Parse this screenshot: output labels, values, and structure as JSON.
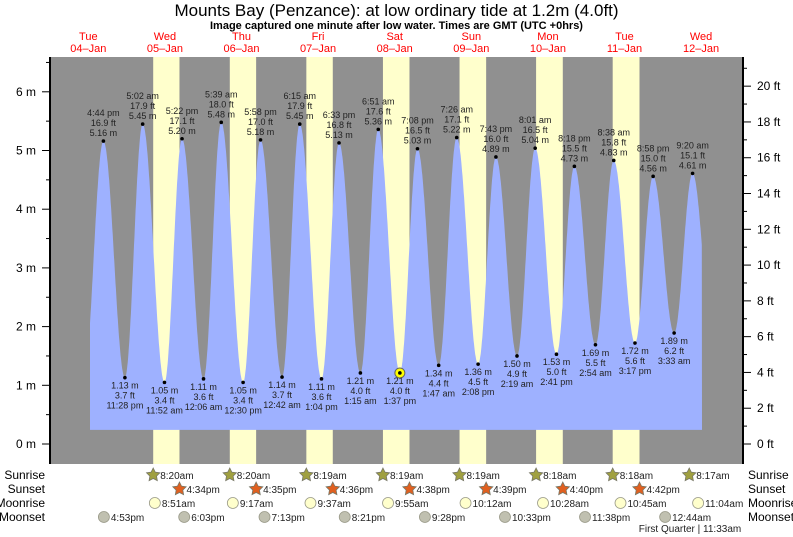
{
  "chart_data": {
    "type": "area",
    "title": "Mounts Bay (Penzance): at low  ordinary tide at 1.2m (4.0ft)",
    "subtitle": "Image captured one minute after low water. Times are GMT (UTC +0hrs)",
    "days": [
      {
        "weekday": "Tue",
        "date": "04–Jan"
      },
      {
        "weekday": "Wed",
        "date": "05–Jan"
      },
      {
        "weekday": "Thu",
        "date": "06–Jan"
      },
      {
        "weekday": "Fri",
        "date": "07–Jan"
      },
      {
        "weekday": "Sat",
        "date": "08–Jan"
      },
      {
        "weekday": "Sun",
        "date": "09–Jan"
      },
      {
        "weekday": "Mon",
        "date": "10–Jan"
      },
      {
        "weekday": "Tue",
        "date": "11–Jan"
      },
      {
        "weekday": "Wed",
        "date": "12–Jan"
      }
    ],
    "y_left": {
      "unit": "m",
      "ticks": [
        0,
        1,
        2,
        3,
        4,
        5,
        6
      ],
      "labels": [
        "0 m",
        "1 m",
        "2 m",
        "3 m",
        "4 m",
        "5 m",
        "6 m"
      ]
    },
    "y_right": {
      "unit": "ft",
      "ticks": [
        0,
        2,
        4,
        6,
        8,
        10,
        12,
        14,
        16,
        18,
        20
      ],
      "labels": [
        "0 ft",
        "2 ft",
        "4 ft",
        "6 ft",
        "8 ft",
        "10 ft",
        "12 ft",
        "14 ft",
        "16 ft",
        "18 ft",
        "20 ft"
      ]
    },
    "tides": [
      {
        "day": 4,
        "time": "4:44 pm",
        "m": "5.16 m",
        "ft": "16.9 ft",
        "type": "high"
      },
      {
        "day": 4,
        "time": "11:28 pm",
        "m": "1.13 m",
        "ft": "3.7 ft",
        "type": "low"
      },
      {
        "day": 5,
        "time": "5:02 am",
        "m": "5.45 m",
        "ft": "17.9 ft",
        "type": "high"
      },
      {
        "day": 5,
        "time": "11:52 am",
        "m": "1.05 m",
        "ft": "3.4 ft",
        "type": "low"
      },
      {
        "day": 5,
        "time": "5:22 pm",
        "m": "5.20 m",
        "ft": "17.1 ft",
        "type": "high"
      },
      {
        "day": 6,
        "time": "12:06 am",
        "m": "1.11 m",
        "ft": "3.6 ft",
        "type": "low"
      },
      {
        "day": 6,
        "time": "5:39 am",
        "m": "5.48 m",
        "ft": "18.0 ft",
        "type": "high"
      },
      {
        "day": 6,
        "time": "12:30 pm",
        "m": "1.05 m",
        "ft": "3.4 ft",
        "type": "low"
      },
      {
        "day": 6,
        "time": "5:58 pm",
        "m": "5.18 m",
        "ft": "17.0 ft",
        "type": "high"
      },
      {
        "day": 7,
        "time": "12:42 am",
        "m": "1.14 m",
        "ft": "3.7 ft",
        "type": "low"
      },
      {
        "day": 7,
        "time": "6:15 am",
        "m": "5.45 m",
        "ft": "17.9 ft",
        "type": "high"
      },
      {
        "day": 7,
        "time": "1:04 pm",
        "m": "1.11 m",
        "ft": "3.6 ft",
        "type": "low"
      },
      {
        "day": 7,
        "time": "6:33 pm",
        "m": "5.13 m",
        "ft": "16.8 ft",
        "type": "high"
      },
      {
        "day": 8,
        "time": "1:15 am",
        "m": "1.21 m",
        "ft": "4.0 ft",
        "type": "low"
      },
      {
        "day": 8,
        "time": "6:51 am",
        "m": "5.36 m",
        "ft": "17.6 ft",
        "type": "high"
      },
      {
        "day": 8,
        "time": "1:37 pm",
        "m": "1.21 m",
        "ft": "4.0 ft",
        "type": "low",
        "current": true
      },
      {
        "day": 8,
        "time": "7:08 pm",
        "m": "5.03 m",
        "ft": "16.5 ft",
        "type": "high"
      },
      {
        "day": 9,
        "time": "1:47 am",
        "m": "1.34 m",
        "ft": "4.4 ft",
        "type": "low"
      },
      {
        "day": 9,
        "time": "7:26 am",
        "m": "5.22 m",
        "ft": "17.1 ft",
        "type": "high"
      },
      {
        "day": 9,
        "time": "2:08 pm",
        "m": "1.36 m",
        "ft": "4.5 ft",
        "type": "low"
      },
      {
        "day": 9,
        "time": "7:43 pm",
        "m": "4.89 m",
        "ft": "16.0 ft",
        "type": "high"
      },
      {
        "day": 10,
        "time": "2:19 am",
        "m": "1.50 m",
        "ft": "4.9 ft",
        "type": "low"
      },
      {
        "day": 10,
        "time": "8:01 am",
        "m": "5.04 m",
        "ft": "16.5 ft",
        "type": "high"
      },
      {
        "day": 10,
        "time": "2:41 pm",
        "m": "1.53 m",
        "ft": "5.0 ft",
        "type": "low"
      },
      {
        "day": 10,
        "time": "8:18 pm",
        "m": "4.73 m",
        "ft": "15.5 ft",
        "type": "high"
      },
      {
        "day": 11,
        "time": "2:54 am",
        "m": "1.69 m",
        "ft": "5.5 ft",
        "type": "low"
      },
      {
        "day": 11,
        "time": "8:38 am",
        "m": "4.83 m",
        "ft": "15.8 ft",
        "type": "high"
      },
      {
        "day": 11,
        "time": "3:17 pm",
        "m": "1.72 m",
        "ft": "5.6 ft",
        "type": "low"
      },
      {
        "day": 11,
        "time": "8:58 pm",
        "m": "4.56 m",
        "ft": "15.0 ft",
        "type": "high"
      },
      {
        "day": 12,
        "time": "3:33 am",
        "m": "1.89 m",
        "ft": "6.2 ft",
        "type": "low"
      },
      {
        "day": 12,
        "time": "9:20 am",
        "m": "4.61 m",
        "ft": "15.1 ft",
        "type": "high"
      }
    ],
    "rows": {
      "sunrise": {
        "label": "Sunrise",
        "events": [
          {
            "day": 5,
            "time": "8:20am"
          },
          {
            "day": 6,
            "time": "8:20am"
          },
          {
            "day": 7,
            "time": "8:19am"
          },
          {
            "day": 8,
            "time": "8:19am"
          },
          {
            "day": 9,
            "time": "8:19am"
          },
          {
            "day": 10,
            "time": "8:18am"
          },
          {
            "day": 11,
            "time": "8:18am"
          },
          {
            "day": 12,
            "time": "8:17am"
          }
        ]
      },
      "sunset": {
        "label": "Sunset",
        "events": [
          {
            "day": 5,
            "time": "4:34pm"
          },
          {
            "day": 6,
            "time": "4:35pm"
          },
          {
            "day": 7,
            "time": "4:36pm"
          },
          {
            "day": 8,
            "time": "4:38pm"
          },
          {
            "day": 9,
            "time": "4:39pm"
          },
          {
            "day": 10,
            "time": "4:40pm"
          },
          {
            "day": 11,
            "time": "4:42pm"
          }
        ]
      },
      "moonrise": {
        "label": "Moonrise",
        "events": [
          {
            "day": 5,
            "time": "8:51am"
          },
          {
            "day": 6,
            "time": "9:17am"
          },
          {
            "day": 7,
            "time": "9:37am"
          },
          {
            "day": 8,
            "time": "9:55am"
          },
          {
            "day": 9,
            "time": "10:12am"
          },
          {
            "day": 10,
            "time": "10:28am"
          },
          {
            "day": 11,
            "time": "10:45am"
          },
          {
            "day": 12,
            "time": "11:04am"
          }
        ]
      },
      "moonset": {
        "label": "Moonset",
        "events": [
          {
            "day": 4,
            "time": "4:53pm"
          },
          {
            "day": 5,
            "time": "6:03pm"
          },
          {
            "day": 6,
            "time": "7:13pm"
          },
          {
            "day": 7,
            "time": "8:21pm"
          },
          {
            "day": 8,
            "time": "9:28pm"
          },
          {
            "day": 9,
            "time": "10:33pm"
          },
          {
            "day": 10,
            "time": "11:38pm"
          },
          {
            "day": 12,
            "time": "12:44am"
          }
        ]
      }
    },
    "moon_phase": "First Quarter | 11:33am",
    "colors": {
      "night": "#909090",
      "day": "#ffffcc",
      "water": "#9eb1ff",
      "day_label": "#ff0000",
      "sunrise_star": "#a0a040",
      "sunset_star": "#e06020",
      "moonrise": "#ffffcc",
      "moonset": "#c0c0b0",
      "current": "#ffff00"
    }
  }
}
